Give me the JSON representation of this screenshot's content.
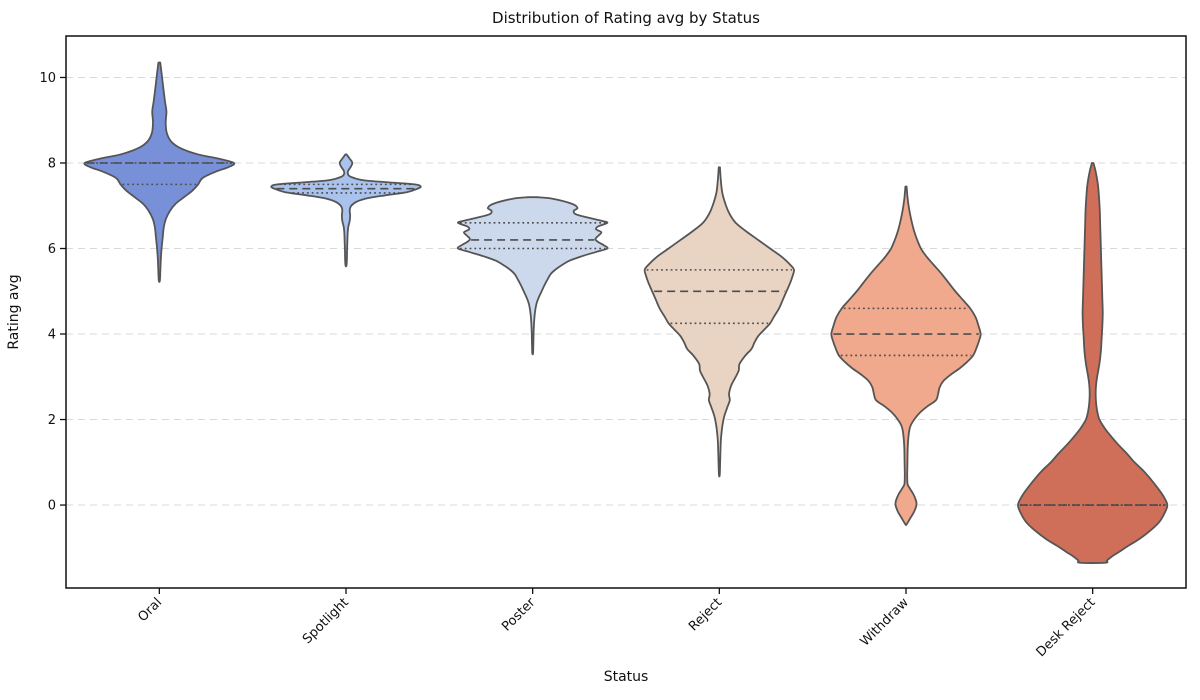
{
  "chart_data": {
    "type": "violin",
    "title": "Distribution of Rating avg by Status",
    "xlabel": "Status",
    "ylabel": "Rating avg",
    "categories": [
      "Oral",
      "Spotlight",
      "Poster",
      "Reject",
      "Withdraw",
      "Desk Reject"
    ],
    "yticks": [
      0,
      2,
      4,
      6,
      8,
      10
    ],
    "ylim": [
      -1.94,
      10.97
    ],
    "grid": "horizontal-dashed",
    "legend": "none",
    "inner": "quartile",
    "violin_width": 0.8,
    "edge_color": "#555555",
    "inner_line_color": "#4d4d4d",
    "grid_color": "#d9d9d9",
    "spine_color": "#111111",
    "palette": [
      "#7890d8",
      "#a9c2ee",
      "#ccd8ec",
      "#e9d3c3",
      "#f0a98c",
      "#cf6f59"
    ],
    "series": [
      {
        "name": "Oral",
        "color": "#7890d8",
        "stats": {
          "min": 5.25,
          "q1": 7.5,
          "median": 8.0,
          "q3": 8.0,
          "max": 10.35
        },
        "profile": [
          [
            10.35,
            0.012
          ],
          [
            10.1,
            0.03
          ],
          [
            9.8,
            0.05
          ],
          [
            9.45,
            0.075
          ],
          [
            9.2,
            0.095
          ],
          [
            8.95,
            0.085
          ],
          [
            8.7,
            0.1
          ],
          [
            8.5,
            0.16
          ],
          [
            8.35,
            0.28
          ],
          [
            8.2,
            0.52
          ],
          [
            8.1,
            0.8
          ],
          [
            8.0,
            1.0
          ],
          [
            7.9,
            0.92
          ],
          [
            7.8,
            0.76
          ],
          [
            7.65,
            0.58
          ],
          [
            7.5,
            0.52
          ],
          [
            7.35,
            0.44
          ],
          [
            7.2,
            0.33
          ],
          [
            7.05,
            0.22
          ],
          [
            6.9,
            0.15
          ],
          [
            6.7,
            0.09
          ],
          [
            6.5,
            0.06
          ],
          [
            6.25,
            0.045
          ],
          [
            6.0,
            0.03
          ],
          [
            5.75,
            0.02
          ],
          [
            5.5,
            0.014
          ],
          [
            5.25,
            0.007
          ]
        ]
      },
      {
        "name": "Spotlight",
        "color": "#a9c2ee",
        "stats": {
          "min": 5.6,
          "q1": 7.3,
          "median": 7.4,
          "q3": 7.5,
          "max": 8.2
        },
        "profile": [
          [
            8.2,
            0.008
          ],
          [
            8.1,
            0.05
          ],
          [
            8.0,
            0.085
          ],
          [
            7.9,
            0.06
          ],
          [
            7.82,
            0.03
          ],
          [
            7.75,
            0.025
          ],
          [
            7.68,
            0.06
          ],
          [
            7.6,
            0.22
          ],
          [
            7.55,
            0.55
          ],
          [
            7.5,
            0.92
          ],
          [
            7.45,
            1.0
          ],
          [
            7.4,
            0.96
          ],
          [
            7.32,
            0.82
          ],
          [
            7.25,
            0.55
          ],
          [
            7.18,
            0.3
          ],
          [
            7.1,
            0.15
          ],
          [
            7.0,
            0.07
          ],
          [
            6.9,
            0.05
          ],
          [
            6.78,
            0.055
          ],
          [
            6.65,
            0.05
          ],
          [
            6.5,
            0.03
          ],
          [
            6.35,
            0.022
          ],
          [
            6.15,
            0.018
          ],
          [
            5.95,
            0.014
          ],
          [
            5.75,
            0.012
          ],
          [
            5.6,
            0.006
          ]
        ]
      },
      {
        "name": "Poster",
        "color": "#ccd8ec",
        "stats": {
          "min": 3.55,
          "q1": 6.0,
          "median": 6.2,
          "q3": 6.6,
          "max": 7.2
        },
        "profile": [
          [
            7.2,
            0.06
          ],
          [
            7.17,
            0.25
          ],
          [
            7.05,
            0.52
          ],
          [
            6.95,
            0.6
          ],
          [
            6.88,
            0.55
          ],
          [
            6.8,
            0.58
          ],
          [
            6.72,
            0.75
          ],
          [
            6.65,
            0.92
          ],
          [
            6.6,
            1.0
          ],
          [
            6.52,
            0.88
          ],
          [
            6.45,
            0.85
          ],
          [
            6.38,
            0.92
          ],
          [
            6.3,
            0.88
          ],
          [
            6.22,
            0.84
          ],
          [
            6.15,
            0.88
          ],
          [
            6.08,
            0.95
          ],
          [
            6.0,
            1.0
          ],
          [
            5.92,
            0.85
          ],
          [
            5.82,
            0.66
          ],
          [
            5.72,
            0.5
          ],
          [
            5.6,
            0.38
          ],
          [
            5.5,
            0.3
          ],
          [
            5.4,
            0.24
          ],
          [
            5.28,
            0.2
          ],
          [
            5.15,
            0.16
          ],
          [
            5.0,
            0.12
          ],
          [
            4.85,
            0.08
          ],
          [
            4.7,
            0.05
          ],
          [
            4.5,
            0.03
          ],
          [
            4.25,
            0.018
          ],
          [
            4.0,
            0.012
          ],
          [
            3.75,
            0.009
          ],
          [
            3.55,
            0.005
          ]
        ]
      },
      {
        "name": "Reject",
        "color": "#e9d3c3",
        "stats": {
          "min": 0.7,
          "q1": 4.25,
          "median": 5.0,
          "q3": 5.5,
          "max": 7.9
        },
        "profile": [
          [
            7.9,
            0.008
          ],
          [
            7.6,
            0.02
          ],
          [
            7.3,
            0.04
          ],
          [
            7.0,
            0.09
          ],
          [
            6.8,
            0.14
          ],
          [
            6.6,
            0.22
          ],
          [
            6.4,
            0.36
          ],
          [
            6.2,
            0.52
          ],
          [
            6.0,
            0.68
          ],
          [
            5.8,
            0.84
          ],
          [
            5.6,
            0.96
          ],
          [
            5.5,
            1.0
          ],
          [
            5.35,
            0.98
          ],
          [
            5.2,
            0.95
          ],
          [
            5.0,
            0.9
          ],
          [
            4.8,
            0.85
          ],
          [
            4.6,
            0.8
          ],
          [
            4.4,
            0.73
          ],
          [
            4.25,
            0.68
          ],
          [
            4.1,
            0.6
          ],
          [
            3.95,
            0.52
          ],
          [
            3.8,
            0.47
          ],
          [
            3.65,
            0.43
          ],
          [
            3.5,
            0.35
          ],
          [
            3.3,
            0.27
          ],
          [
            3.15,
            0.26
          ],
          [
            3.0,
            0.22
          ],
          [
            2.8,
            0.16
          ],
          [
            2.6,
            0.13
          ],
          [
            2.45,
            0.14
          ],
          [
            2.3,
            0.11
          ],
          [
            2.1,
            0.07
          ],
          [
            1.9,
            0.045
          ],
          [
            1.7,
            0.03
          ],
          [
            1.5,
            0.02
          ],
          [
            1.2,
            0.014
          ],
          [
            0.95,
            0.01
          ],
          [
            0.7,
            0.005
          ]
        ]
      },
      {
        "name": "Withdraw",
        "color": "#f0a98c",
        "stats": {
          "min": -0.45,
          "q1": 3.5,
          "median": 4.0,
          "q3": 4.6,
          "max": 7.45
        },
        "profile": [
          [
            7.45,
            0.008
          ],
          [
            7.2,
            0.02
          ],
          [
            7.0,
            0.035
          ],
          [
            6.8,
            0.055
          ],
          [
            6.6,
            0.08
          ],
          [
            6.4,
            0.11
          ],
          [
            6.2,
            0.15
          ],
          [
            6.0,
            0.2
          ],
          [
            5.8,
            0.28
          ],
          [
            5.6,
            0.38
          ],
          [
            5.4,
            0.48
          ],
          [
            5.2,
            0.57
          ],
          [
            5.0,
            0.66
          ],
          [
            4.8,
            0.76
          ],
          [
            4.6,
            0.86
          ],
          [
            4.4,
            0.93
          ],
          [
            4.2,
            0.97
          ],
          [
            4.0,
            1.0
          ],
          [
            3.85,
            0.98
          ],
          [
            3.7,
            0.95
          ],
          [
            3.5,
            0.9
          ],
          [
            3.35,
            0.82
          ],
          [
            3.2,
            0.72
          ],
          [
            3.05,
            0.6
          ],
          [
            2.9,
            0.5
          ],
          [
            2.75,
            0.45
          ],
          [
            2.6,
            0.43
          ],
          [
            2.45,
            0.4
          ],
          [
            2.3,
            0.28
          ],
          [
            2.15,
            0.18
          ],
          [
            2.0,
            0.11
          ],
          [
            1.85,
            0.06
          ],
          [
            1.7,
            0.04
          ],
          [
            1.5,
            0.028
          ],
          [
            1.3,
            0.022
          ],
          [
            1.1,
            0.02
          ],
          [
            0.9,
            0.018
          ],
          [
            0.7,
            0.016
          ],
          [
            0.5,
            0.02
          ],
          [
            0.42,
            0.04
          ],
          [
            0.25,
            0.1
          ],
          [
            0.1,
            0.135
          ],
          [
            0.0,
            0.14
          ],
          [
            -0.15,
            0.11
          ],
          [
            -0.3,
            0.06
          ],
          [
            -0.45,
            0.008
          ]
        ]
      },
      {
        "name": "Desk Reject",
        "color": "#cf6f59",
        "stats": {
          "min": -1.35,
          "q1": 0.0,
          "median": 0.0,
          "q3": 0.0,
          "max": 8.0
        },
        "profile": [
          [
            8.0,
            0.01
          ],
          [
            7.8,
            0.04
          ],
          [
            7.5,
            0.07
          ],
          [
            7.2,
            0.085
          ],
          [
            6.9,
            0.095
          ],
          [
            6.6,
            0.1
          ],
          [
            6.3,
            0.105
          ],
          [
            6.0,
            0.11
          ],
          [
            5.7,
            0.115
          ],
          [
            5.4,
            0.12
          ],
          [
            5.1,
            0.125
          ],
          [
            4.8,
            0.13
          ],
          [
            4.5,
            0.135
          ],
          [
            4.2,
            0.13
          ],
          [
            3.9,
            0.12
          ],
          [
            3.6,
            0.11
          ],
          [
            3.3,
            0.09
          ],
          [
            3.0,
            0.06
          ],
          [
            2.8,
            0.045
          ],
          [
            2.6,
            0.04
          ],
          [
            2.4,
            0.045
          ],
          [
            2.2,
            0.06
          ],
          [
            2.0,
            0.09
          ],
          [
            1.8,
            0.16
          ],
          [
            1.6,
            0.25
          ],
          [
            1.4,
            0.35
          ],
          [
            1.2,
            0.46
          ],
          [
            1.0,
            0.56
          ],
          [
            0.8,
            0.68
          ],
          [
            0.6,
            0.78
          ],
          [
            0.4,
            0.87
          ],
          [
            0.2,
            0.95
          ],
          [
            0.0,
            1.0
          ],
          [
            -0.2,
            0.96
          ],
          [
            -0.4,
            0.89
          ],
          [
            -0.6,
            0.77
          ],
          [
            -0.8,
            0.62
          ],
          [
            -0.95,
            0.48
          ],
          [
            -1.1,
            0.35
          ],
          [
            -1.2,
            0.26
          ],
          [
            -1.3,
            0.19
          ],
          [
            -1.35,
            0.17
          ]
        ]
      }
    ]
  }
}
